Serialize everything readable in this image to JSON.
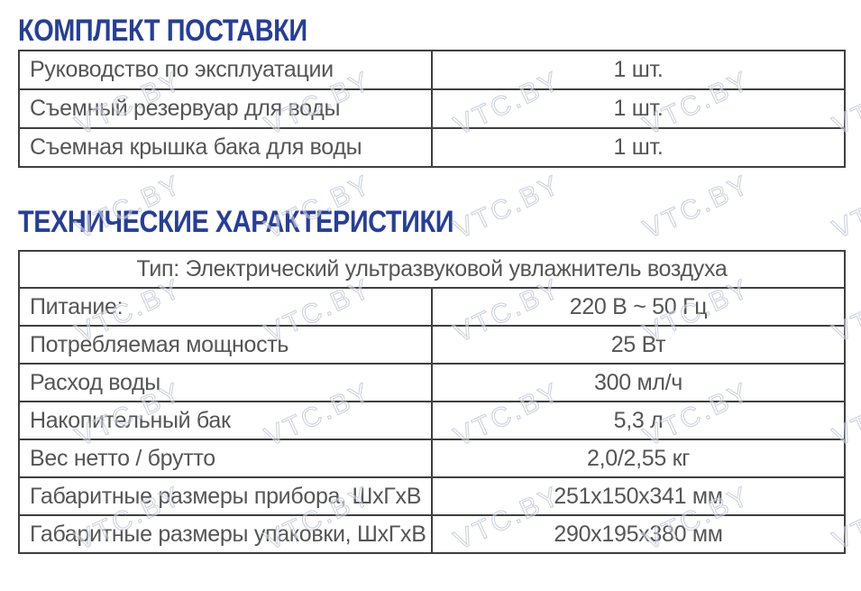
{
  "sections": [
    {
      "title": "КОМПЛЕКТ ПОСТАВКИ",
      "rows": [
        {
          "label": "Руководство по эксплуатации",
          "value": "1 шт."
        },
        {
          "label": "Съемный резервуар для воды",
          "value": "1 шт."
        },
        {
          "label": "Съемная крышка бака для воды",
          "value": "1 шт."
        }
      ]
    },
    {
      "title": "ТЕХНИЧЕСКИЕ ХАРАКТЕРИСТИКИ",
      "header": "Тип: Электрический ультразвуковой увлажнитель воздуха",
      "rows": [
        {
          "label": "Питание:",
          "value": "220 В ~ 50 Гц"
        },
        {
          "label": "Потребляемая мощность",
          "value": "25 Вт"
        },
        {
          "label": "Расход воды",
          "value": "300 мл/ч"
        },
        {
          "label": "Накопительный бак",
          "value": "5,3 л"
        },
        {
          "label": "Вес нетто / брутто",
          "value": "2,0/2,55 кг"
        },
        {
          "label": "Габаритные размеры прибора, ШхГхВ",
          "value": "251x150x341 мм"
        },
        {
          "label": "Габаритные размеры упаковки, ШхГхВ",
          "value": "290x195x380 мм"
        }
      ]
    }
  ],
  "watermark": {
    "text": "VTC.BY"
  },
  "colors": {
    "title_accent": "#263e9a",
    "table_border": "#3f3f3f",
    "cell_text": "#555555",
    "watermark_outline": "#b3b9c6"
  }
}
